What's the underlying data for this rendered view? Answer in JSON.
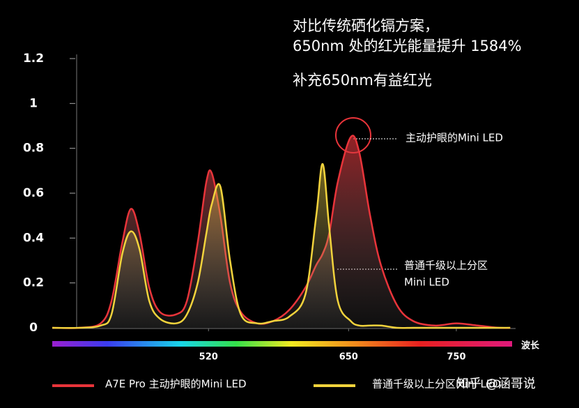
{
  "chart_data": {
    "type": "line",
    "title": [
      "对比传统硒化镉方案，",
      "650nm 处的红光能量提升 1584%"
    ],
    "subtitle": "补充650nm有益红光",
    "annotations": [
      "主动护眼的Mini LED",
      "普通千级以上分区",
      "Mini LED"
    ],
    "x_label": "波长",
    "watermark": "知乎 @涵哥说",
    "x": [
      375,
      400,
      420,
      430,
      440,
      448,
      456,
      465,
      475,
      490,
      500,
      510,
      518,
      523,
      531,
      540,
      550,
      565,
      580,
      595,
      610,
      620,
      626,
      632,
      640,
      652,
      660,
      670,
      680,
      695,
      710,
      730,
      750,
      770,
      790,
      800
    ],
    "series": [
      {
        "name": "A7E Pro 主动护眼的Mini LED",
        "color": "#e8343a",
        "values": [
          0,
          0,
          0.02,
          0.12,
          0.38,
          0.53,
          0.42,
          0.18,
          0.07,
          0.06,
          0.12,
          0.38,
          0.65,
          0.69,
          0.5,
          0.2,
          0.07,
          0.02,
          0.03,
          0.08,
          0.18,
          0.28,
          0.33,
          0.42,
          0.65,
          0.85,
          0.78,
          0.5,
          0.28,
          0.1,
          0.03,
          0.01,
          0.02,
          0.01,
          0,
          0
        ]
      },
      {
        "name": "普通千级以上分区Mini LED",
        "color": "#f2d33c",
        "values": [
          0,
          0,
          0.01,
          0.06,
          0.33,
          0.43,
          0.35,
          0.12,
          0.04,
          0.02,
          0.06,
          0.2,
          0.42,
          0.55,
          0.63,
          0.3,
          0.06,
          0.02,
          0.03,
          0.05,
          0.15,
          0.5,
          0.73,
          0.45,
          0.12,
          0.03,
          0.01,
          0.01,
          0.01,
          0,
          0,
          0,
          0,
          0,
          0,
          0
        ]
      }
    ],
    "xlim": [
      375,
      805
    ],
    "xticks": [
      520,
      650,
      750
    ],
    "ylim": [
      0,
      1.2
    ],
    "yticks": [
      0,
      0.2,
      0.4,
      0.6,
      0.8,
      1,
      1.2
    ]
  }
}
